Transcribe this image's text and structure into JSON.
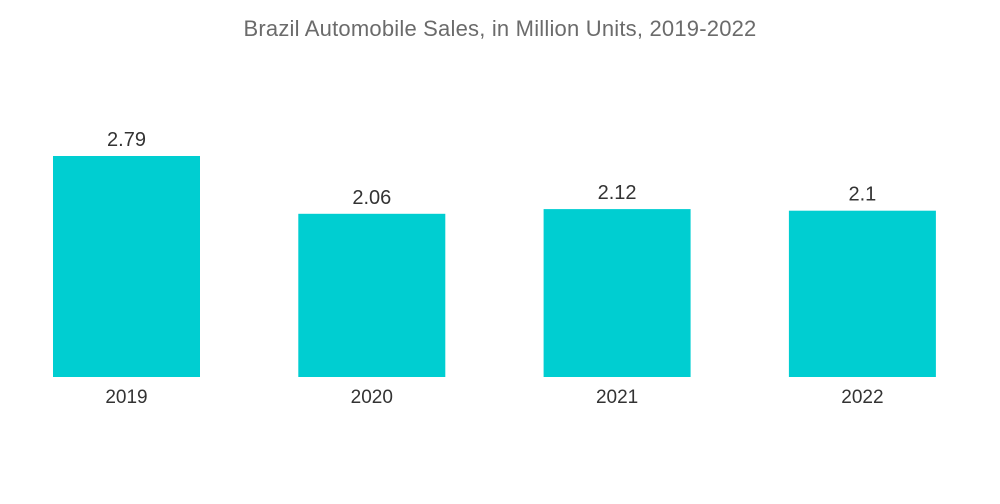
{
  "chart_data": {
    "type": "bar",
    "title": "Brazil Automobile Sales, in Million Units, 2019-2022",
    "xlabel": "",
    "ylabel": "",
    "categories": [
      "2019",
      "2020",
      "2021",
      "2022"
    ],
    "values": [
      2.79,
      2.06,
      2.12,
      2.1
    ],
    "value_labels": [
      "2.79",
      "2.06",
      "2.12",
      "2.1"
    ],
    "ylim": [
      0,
      2.79
    ],
    "grid": false,
    "legend": "none",
    "bar_color": "#00CED1"
  }
}
